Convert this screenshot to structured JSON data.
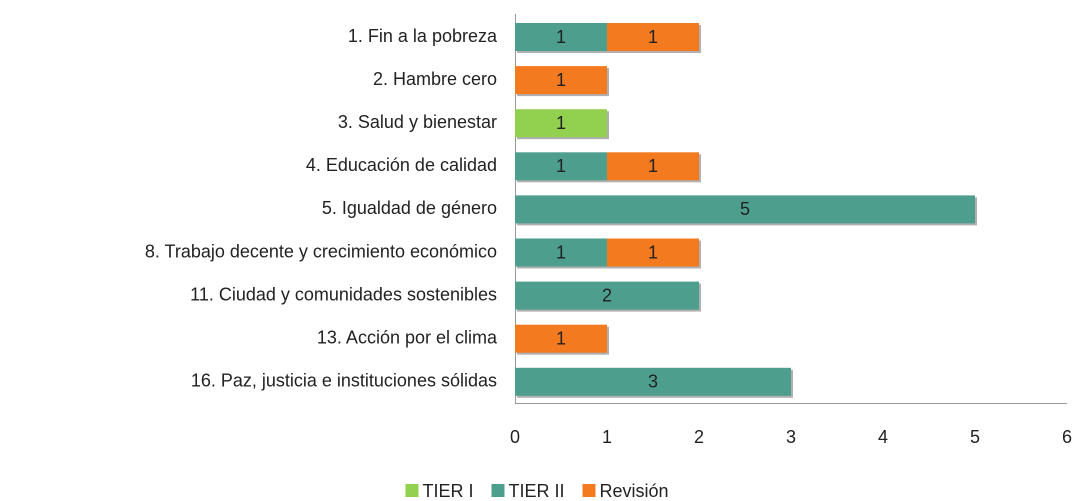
{
  "chart_data": {
    "type": "stacked-barh",
    "categories": [
      "1. Fin a la pobreza",
      "2. Hambre cero",
      "3. Salud y bienestar",
      "4. Educación de calidad",
      "5. Igualdad de género",
      "8. Trabajo decente y crecimiento económico",
      "11. Ciudad y comunidades sostenibles",
      "13. Acción por el clima",
      "16. Paz, justicia e instituciones sólidas"
    ],
    "series": [
      {
        "name": "TIER I",
        "color": "#92d050",
        "values": [
          null,
          null,
          1,
          null,
          null,
          null,
          null,
          null,
          null
        ]
      },
      {
        "name": "TIER II",
        "color": "#4e9e8e",
        "values": [
          1,
          null,
          null,
          1,
          5,
          1,
          2,
          null,
          3
        ]
      },
      {
        "name": "Revisión",
        "color": "#f47a20",
        "values": [
          1,
          1,
          null,
          1,
          null,
          1,
          null,
          1,
          null
        ]
      }
    ],
    "xlim": [
      0,
      6
    ],
    "xticks": [
      0,
      1,
      2,
      3,
      4,
      5,
      6
    ],
    "grid": false,
    "legend": "bottom"
  }
}
